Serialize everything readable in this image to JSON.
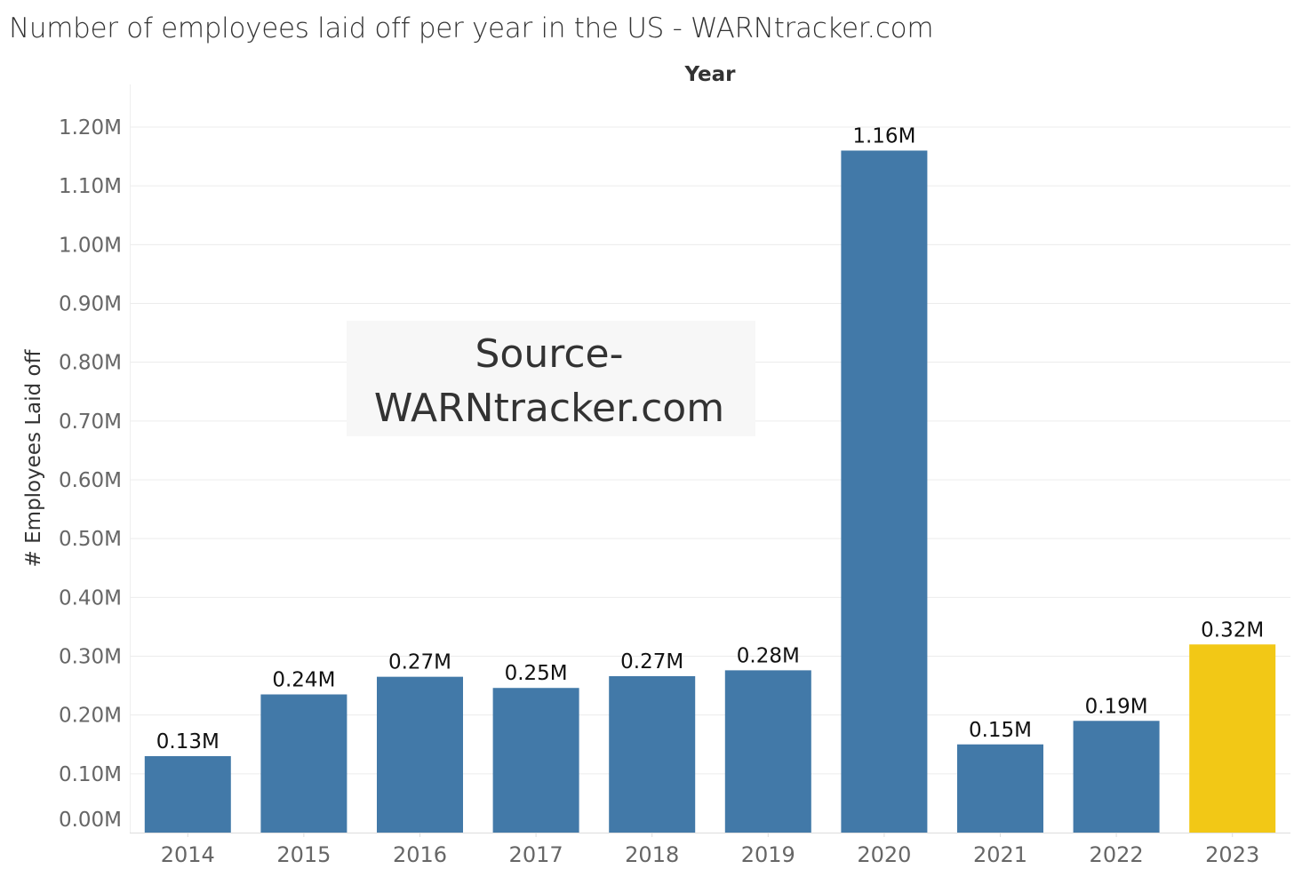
{
  "title": "Number of employees laid off per year in the US - WARNtracker.com",
  "watermark": {
    "line1": "Source-",
    "line2": "WARNtracker.com"
  },
  "colors": {
    "bar": "#4279a8",
    "highlight": "#f2c816",
    "grid": "#ececec"
  },
  "chart_data": {
    "type": "bar",
    "title": "Number of employees laid off per year in the US - WARNtracker.com",
    "xlabel": "Year",
    "ylabel": "# Employees Laid off",
    "categories": [
      "2014",
      "2015",
      "2016",
      "2017",
      "2018",
      "2019",
      "2020",
      "2021",
      "2022",
      "2023"
    ],
    "values": [
      0.13,
      0.235,
      0.265,
      0.246,
      0.266,
      0.276,
      1.16,
      0.15,
      0.19,
      0.32
    ],
    "data_labels": [
      "0.13M",
      "0.24M",
      "0.27M",
      "0.25M",
      "0.27M",
      "0.28M",
      "1.16M",
      "0.15M",
      "0.19M",
      "0.32M"
    ],
    "unit": "M",
    "ylim": [
      0,
      1.2
    ],
    "yticks": [
      0,
      0.1,
      0.2,
      0.3,
      0.4,
      0.5,
      0.6,
      0.7,
      0.8,
      0.9,
      1.0,
      1.1,
      1.2
    ],
    "ytick_labels": [
      "0.00M",
      "0.10M",
      "0.20M",
      "0.30M",
      "0.40M",
      "0.50M",
      "0.60M",
      "0.70M",
      "0.80M",
      "0.90M",
      "1.00M",
      "1.10M",
      "1.20M"
    ],
    "highlight_category": "2023",
    "grid": true
  }
}
